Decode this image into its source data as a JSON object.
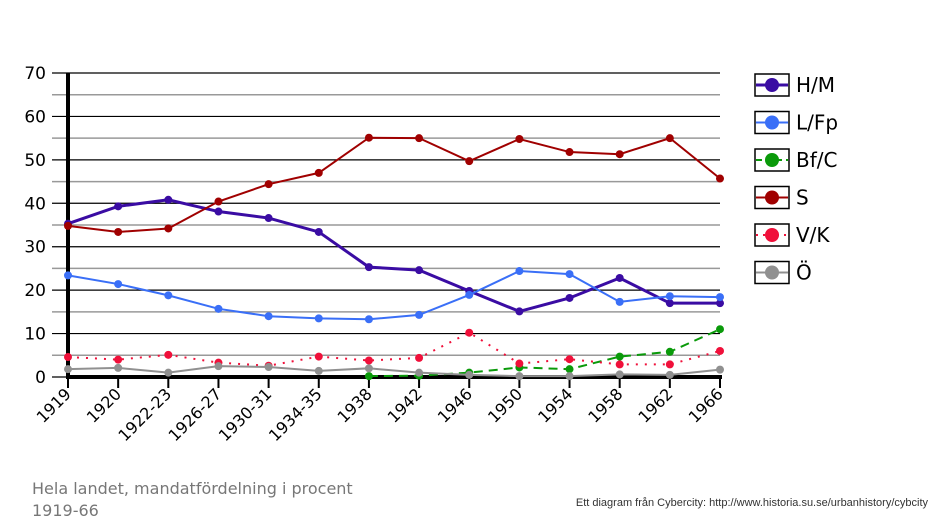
{
  "chart_data": {
    "type": "line",
    "title": "Hela landet, mandatfördelning i procent",
    "subtitle": "1919-66",
    "credit": "Ett diagram från Cybercity: http://www.historia.su.se/urbanhistory/cybcity",
    "xlabel": "",
    "ylabel": "",
    "ylim": [
      0,
      70
    ],
    "yticks": [
      0,
      10,
      20,
      30,
      40,
      50,
      60,
      70
    ],
    "grid": true,
    "legend_position": "right",
    "categories": [
      "1919",
      "1920",
      "1922-23",
      "1926-27",
      "1930-31",
      "1934-35",
      "1938",
      "1942",
      "1946",
      "1950",
      "1954",
      "1958",
      "1962",
      "1966"
    ],
    "series": [
      {
        "name": "H/M",
        "color": "#3a0ca3",
        "dash": "solid",
        "width": 3,
        "values": [
          35.3,
          39.3,
          40.8,
          38.1,
          36.6,
          33.4,
          25.3,
          24.6,
          19.8,
          15.1,
          18.2,
          22.8,
          17,
          17
        ]
      },
      {
        "name": "L/Fp",
        "color": "#3a6ff7",
        "dash": "solid",
        "width": 2,
        "values": [
          23.4,
          21.4,
          18.8,
          15.7,
          14,
          13.5,
          13.3,
          14.3,
          18.9,
          24.4,
          23.7,
          17.3,
          18.6,
          18.4
        ]
      },
      {
        "name": "Bf/C",
        "color": "#0a9a0a",
        "dash": "dashed",
        "width": 2,
        "values": [
          null,
          null,
          null,
          null,
          null,
          null,
          0.2,
          0.3,
          1,
          2.2,
          1.8,
          4.7,
          5.8,
          11
        ]
      },
      {
        "name": "S",
        "color": "#a00000",
        "dash": "solid",
        "width": 2,
        "values": [
          34.8,
          33.4,
          34.2,
          40.4,
          44.4,
          47,
          55.1,
          55,
          49.7,
          54.8,
          51.8,
          51.3,
          55,
          45.7
        ]
      },
      {
        "name": "V/K",
        "color": "#f0103a",
        "dash": "dotted",
        "width": 2,
        "values": [
          4.6,
          4,
          5.1,
          3.3,
          2.6,
          4.7,
          3.8,
          4.4,
          10.2,
          3.1,
          4.1,
          2.9,
          2.9,
          6
        ]
      },
      {
        "name": "Ö",
        "color": "#909090",
        "dash": "solid",
        "width": 2,
        "values": [
          1.8,
          2.1,
          1,
          2.5,
          2.3,
          1.4,
          2,
          1,
          0.5,
          0.2,
          0.2,
          0.6,
          0.5,
          1.7
        ]
      }
    ]
  }
}
